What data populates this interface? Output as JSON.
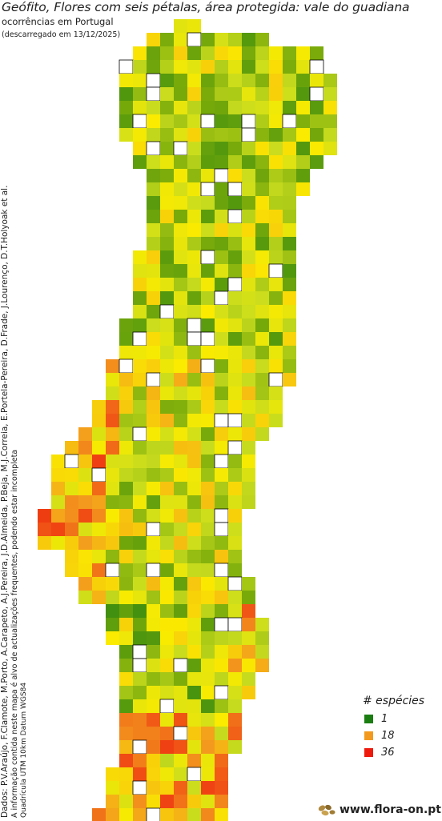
{
  "header": {
    "title": "Geófito, Flores com seis pétalas, área protegida: vale do guadiana",
    "subtitle": "ocorrências em Portugal",
    "download_note": "(descarregado em 13/12/2025)"
  },
  "side_text": {
    "credits": "Dados: P.V.Araújo, F.Clamote, M.Porto, A.Carapeto, A.J.Pereira, J.D.Almeida, P.Beja, M.J.Correia, E.Portela-Pereira, D.Frade, J.Lourenço, D.T.Holyoak et al.",
    "disclaimer": "A informação contida neste mapa é alvo de actualizações frequentes, podendo estar incompleta",
    "grid_info": "Quadrícula UTM 10km Datum WGS84"
  },
  "legend": {
    "title": "# espécies",
    "items": [
      {
        "label": "1",
        "color": "#1a7d12"
      },
      {
        "label": "18",
        "color": "#f39a1e"
      },
      {
        "label": "36",
        "color": "#ee1a0e"
      }
    ]
  },
  "logo": {
    "text": "www.flora-on.pt",
    "icon": "seed-logo-icon"
  },
  "colors": {
    "low": "#1a7d12",
    "mid": "#f39a1e",
    "high": "#ee1a0e",
    "border": "#000000"
  }
}
